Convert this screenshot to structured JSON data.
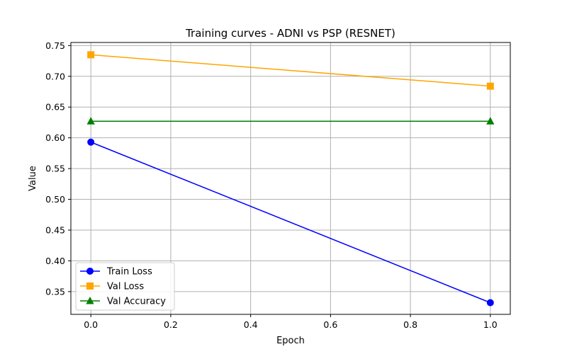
{
  "chart_data": {
    "type": "line",
    "title": "Training curves - ADNI vs PSP (RESNET)",
    "xlabel": "Epoch",
    "ylabel": "Value",
    "x": [
      0.0,
      1.0
    ],
    "xlim": [
      -0.05,
      1.05
    ],
    "ylim": [
      0.313,
      0.755
    ],
    "xticks": [
      0.0,
      0.2,
      0.4,
      0.6,
      0.8,
      1.0
    ],
    "xtick_labels": [
      "0.0",
      "0.2",
      "0.4",
      "0.6",
      "0.8",
      "1.0"
    ],
    "yticks": [
      0.35,
      0.4,
      0.45,
      0.5,
      0.55,
      0.6,
      0.65,
      0.7,
      0.75
    ],
    "ytick_labels": [
      "0.35",
      "0.40",
      "0.45",
      "0.50",
      "0.55",
      "0.60",
      "0.65",
      "0.70",
      "0.75"
    ],
    "grid": true,
    "legend_position": "lower-left",
    "series": [
      {
        "name": "Train Loss",
        "values": [
          0.593,
          0.332
        ],
        "color": "#0000ff",
        "marker": "circle"
      },
      {
        "name": "Val Loss",
        "values": [
          0.735,
          0.684
        ],
        "color": "#ffa500",
        "marker": "square"
      },
      {
        "name": "Val Accuracy",
        "values": [
          0.627,
          0.627
        ],
        "color": "#008000",
        "marker": "triangle"
      }
    ]
  }
}
